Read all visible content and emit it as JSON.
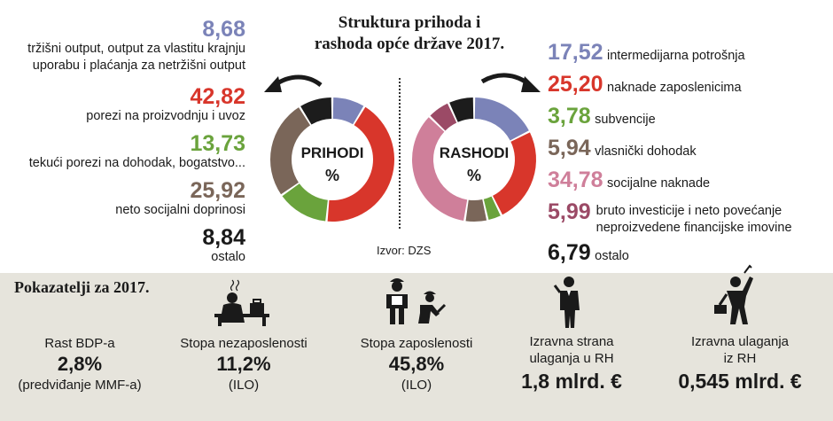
{
  "title": "Struktura prihoda i rashoda opće države 2017.",
  "source": "Izvor: DZS",
  "chart_data": [
    {
      "type": "pie",
      "center_label": "PRIHODI",
      "center_unit": "%",
      "slices": [
        {
          "label": "tržišni output, output za vlastitu krajnju uporabu i plaćanja za netržišni output",
          "value": 8.68,
          "value_text": "8,68",
          "color": "#7b83b8"
        },
        {
          "label": "porezi na proizvodnju i uvoz",
          "value": 42.82,
          "value_text": "42,82",
          "color": "#d8362b"
        },
        {
          "label": "tekući porezi na dohodak, bogatstvo...",
          "value": 13.73,
          "value_text": "13,73",
          "color": "#6aa33c"
        },
        {
          "label": "neto socijalni doprinosi",
          "value": 25.92,
          "value_text": "25,92",
          "color": "#7a6659"
        },
        {
          "label": "ostalo",
          "value": 8.84,
          "value_text": "8,84",
          "color": "#1c1c1c"
        }
      ]
    },
    {
      "type": "pie",
      "center_label": "RASHODI",
      "center_unit": "%",
      "slices": [
        {
          "label": "intermedijarna potrošnja",
          "value": 17.52,
          "value_text": "17,52",
          "color": "#7b83b8"
        },
        {
          "label": "naknade zaposlenicima",
          "value": 25.2,
          "value_text": "25,20",
          "color": "#d8362b"
        },
        {
          "label": "subvencije",
          "value": 3.78,
          "value_text": "3,78",
          "color": "#6aa33c"
        },
        {
          "label": "vlasnički dohodak",
          "value": 5.94,
          "value_text": "5,94",
          "color": "#7a6659"
        },
        {
          "label": "socijalne naknade",
          "value": 34.78,
          "value_text": "34,78",
          "color": "#cf7f9a"
        },
        {
          "label": "bruto investicije i neto povećanje neproizvedene financijske imovine",
          "value": 5.99,
          "value_text": "5,99",
          "color": "#9b4a66"
        },
        {
          "label": "ostalo",
          "value": 6.79,
          "value_text": "6,79",
          "color": "#1c1c1c"
        }
      ]
    }
  ],
  "left_labels": [
    {
      "value": "8,68",
      "lines": [
        "tržišni output, output za vlastitu krajnju",
        "uporabu i plaćanja za netržišni output"
      ]
    },
    {
      "value": "42,82",
      "lines": [
        "porezi na proizvodnju i uvoz"
      ]
    },
    {
      "value": "13,73",
      "lines": [
        "tekući porezi na dohodak, bogatstvo..."
      ]
    },
    {
      "value": "25,92",
      "lines": [
        "neto socijalni doprinosi"
      ]
    },
    {
      "value": "8,84",
      "lines": [
        "ostalo"
      ]
    }
  ],
  "right_labels": [
    {
      "value": "17,52",
      "lines": [
        "intermedijarna potrošnja"
      ]
    },
    {
      "value": "25,20",
      "lines": [
        "naknade zaposlenicima"
      ]
    },
    {
      "value": "3,78",
      "lines": [
        "subvencije"
      ]
    },
    {
      "value": "5,94",
      "lines": [
        "vlasnički dohodak"
      ]
    },
    {
      "value": "34,78",
      "lines": [
        "socijalne naknade"
      ]
    },
    {
      "value": "5,99",
      "lines": [
        "bruto investicije i neto povećanje",
        "neproizvedene financijske imovine"
      ]
    },
    {
      "value": "6,79",
      "lines": [
        "ostalo"
      ]
    }
  ],
  "indicators": {
    "title": "Pokazatelji za 2017.",
    "items": [
      {
        "title": "Rast BDP-a",
        "value": "2,8%",
        "note": "(predviđanje MMF-a)",
        "icon": "none"
      },
      {
        "title": "Stopa nezaposlenosti",
        "value": "11,2%",
        "note": "(ILO)",
        "icon": "unemployed-person-icon"
      },
      {
        "title": "Stopa zaposlenosti",
        "value": "45,8%",
        "note": "(ILO)",
        "icon": "workers-icon"
      },
      {
        "title": "Izravna strana ulaganja u RH",
        "value": "1,8 mlrd. €",
        "note": "",
        "icon": "businesswoman-icon"
      },
      {
        "title": "Izravna ulaganja iz RH",
        "value": "0,545 mlrd. €",
        "note": "",
        "icon": "businessman-icon"
      }
    ]
  }
}
